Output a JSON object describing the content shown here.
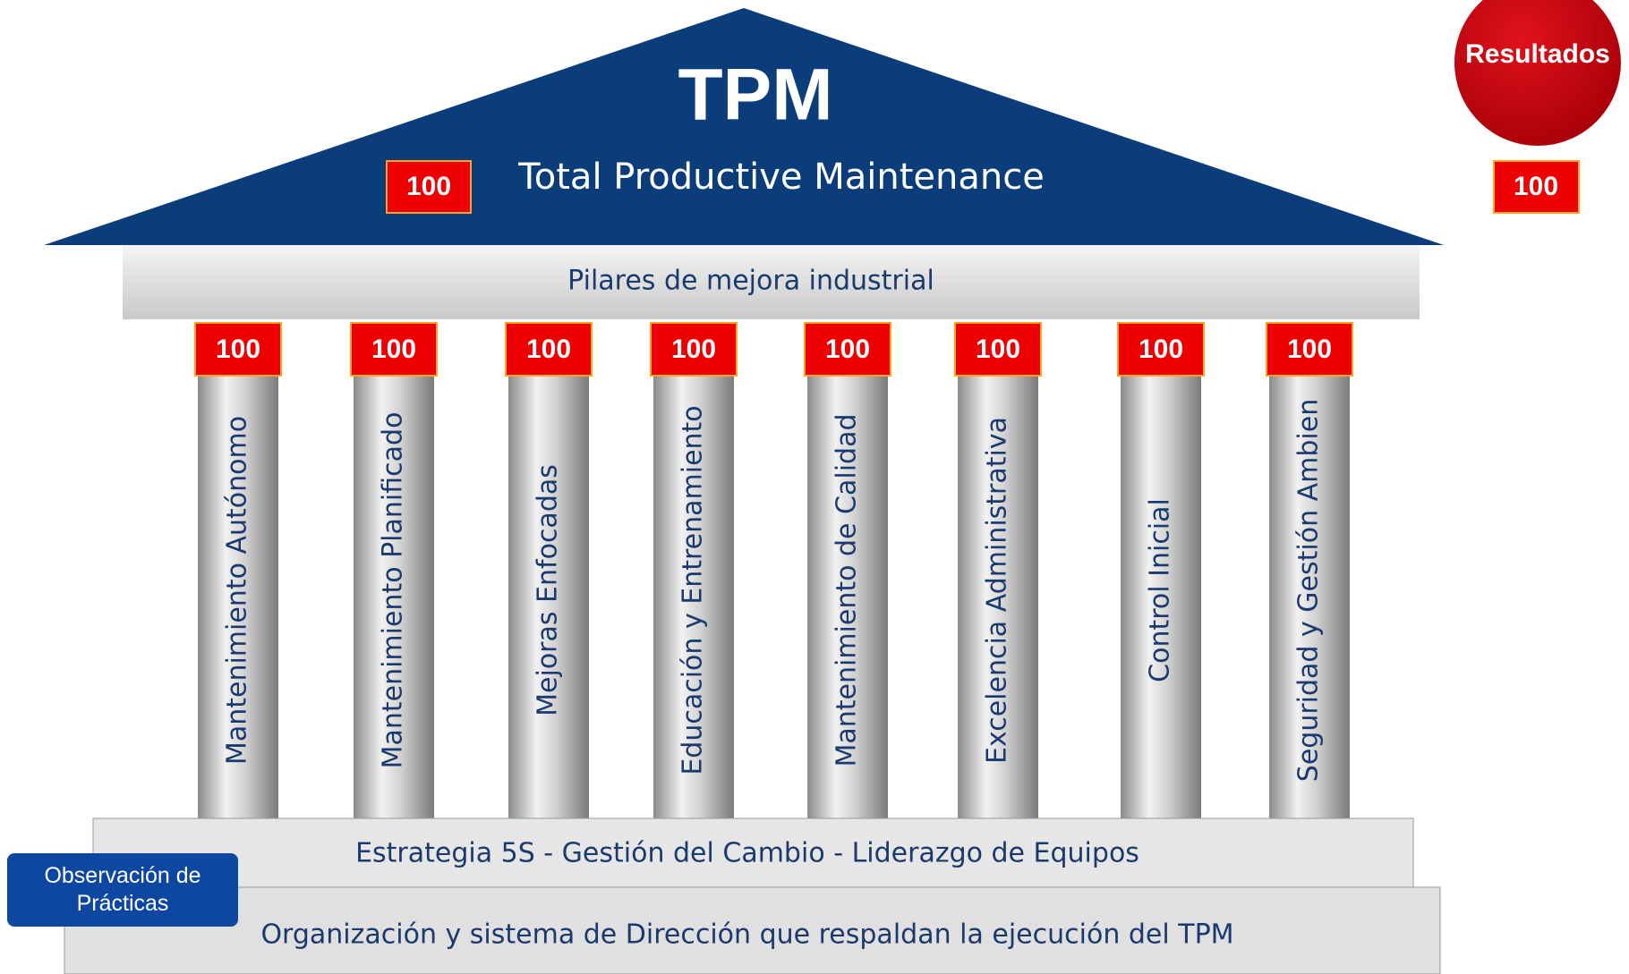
{
  "roof": {
    "title": "TPM",
    "subtitle": "Total Productive Maintenance",
    "score": 100
  },
  "beam": {
    "label": "Pilares de mejora industrial"
  },
  "pillars": [
    {
      "label": "Mantenimiento Autónomo",
      "score": 100
    },
    {
      "label": "Mantenimiento Planificado",
      "score": 100
    },
    {
      "label": "Mejoras Enfocadas",
      "score": 100
    },
    {
      "label": "Educación y Entrenamiento",
      "score": 100
    },
    {
      "label": "Mantenimiento de Calidad",
      "score": 100
    },
    {
      "label": "Excelencia Administrativa",
      "score": 100
    },
    {
      "label": "Control Inicial",
      "score": 100
    },
    {
      "label": "Seguridad y Gestión Ambien",
      "score": 100
    }
  ],
  "foundation": {
    "upper": "Estrategia 5S - Gestión del Cambio -  Liderazgo de Equipos",
    "lower": "Organización y sistema de Dirección que respaldan la ejecución del TPM"
  },
  "results": {
    "label": "Resultados",
    "score": 100
  },
  "button": {
    "label": "Observación de Prácticas"
  }
}
